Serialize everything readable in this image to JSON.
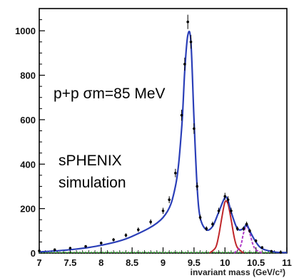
{
  "chart_data": {
    "type": "scatter",
    "xlabel": "invariant mass (GeV/c²)",
    "ylabel": "",
    "xlim": [
      7,
      11
    ],
    "ylim": [
      0,
      1100
    ],
    "x_ticks": [
      "7",
      "7.5",
      "8",
      "8.5",
      "9",
      "9.5",
      "10",
      "10.5",
      "11"
    ],
    "y_ticks": [
      "0",
      "200",
      "400",
      "600",
      "800",
      "1000"
    ],
    "annotations": [
      "p+p σm=85 MeV",
      "sPHENIX",
      "simulation"
    ],
    "grid": false,
    "colors": {
      "data": "#000000",
      "total_fit": "#2b3fb8",
      "upsilon_2s": "#c0262a",
      "upsilon_3s": "#b03cc8",
      "background": "#3aa83a"
    },
    "series": [
      {
        "role": "data",
        "style": "points-with-error-bars",
        "x": [
          7.0,
          7.25,
          7.5,
          7.75,
          8.0,
          8.2,
          8.4,
          8.6,
          8.8,
          9.0,
          9.1,
          9.2,
          9.3,
          9.35,
          9.4,
          9.45,
          9.5,
          9.55,
          9.6,
          9.7,
          9.8,
          9.9,
          10.0,
          10.05,
          10.1,
          10.2,
          10.3,
          10.35,
          10.4,
          10.5,
          10.6,
          10.75,
          10.9
        ],
        "y": [
          10,
          15,
          22,
          30,
          45,
          60,
          80,
          105,
          140,
          190,
          240,
          360,
          620,
          850,
          1040,
          950,
          560,
          300,
          160,
          110,
          130,
          190,
          255,
          240,
          190,
          110,
          110,
          130,
          100,
          55,
          25,
          8,
          3
        ]
      },
      {
        "role": "total-fit",
        "style": "line",
        "x": [
          7.0,
          7.5,
          8.0,
          8.5,
          9.0,
          9.2,
          9.3,
          9.35,
          9.4,
          9.45,
          9.5,
          9.55,
          9.6,
          9.7,
          9.8,
          9.9,
          10.0,
          10.05,
          10.1,
          10.2,
          10.3,
          10.35,
          10.4,
          10.5,
          10.6,
          10.8,
          11.0
        ],
        "y": [
          5,
          15,
          35,
          75,
          160,
          300,
          560,
          820,
          980,
          950,
          600,
          300,
          160,
          105,
          120,
          185,
          250,
          235,
          185,
          110,
          110,
          130,
          100,
          50,
          20,
          5,
          2
        ]
      },
      {
        "role": "upsilon-2s-component",
        "style": "line",
        "x": [
          9.75,
          9.85,
          9.9,
          9.95,
          10.0,
          10.05,
          10.1,
          10.15,
          10.2,
          10.3
        ],
        "y": [
          0,
          25,
          80,
          160,
          230,
          220,
          150,
          70,
          25,
          0
        ]
      },
      {
        "role": "upsilon-3s-component",
        "style": "line",
        "x": [
          10.15,
          10.25,
          10.3,
          10.35,
          10.4,
          10.45,
          10.5,
          10.6
        ],
        "y": [
          0,
          30,
          90,
          120,
          90,
          40,
          15,
          0
        ]
      },
      {
        "role": "background-component",
        "style": "dotted-line",
        "x": [
          7.0,
          8.0,
          9.0,
          10.0,
          11.0
        ],
        "y": [
          3,
          3,
          3,
          3,
          3
        ]
      }
    ]
  }
}
